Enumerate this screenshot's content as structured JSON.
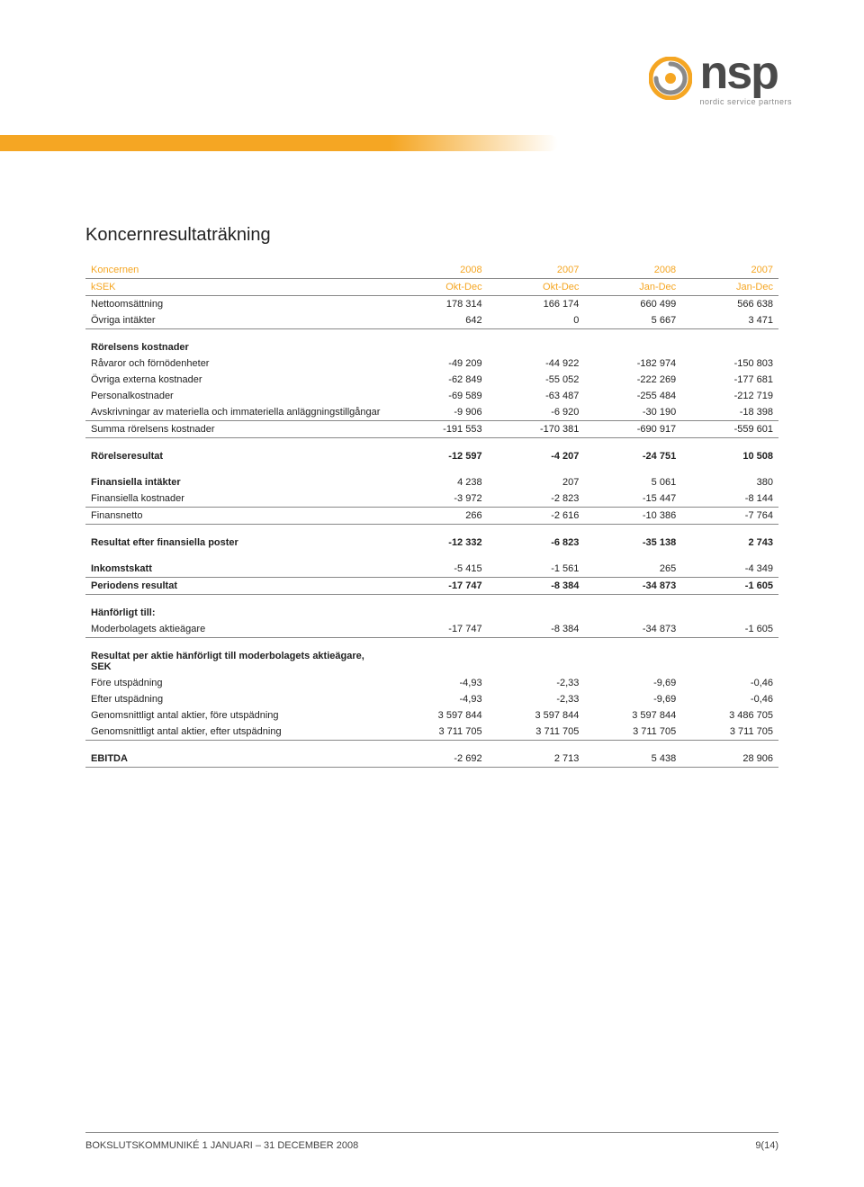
{
  "logo": {
    "text": "nsp",
    "tagline": "nordic service partners",
    "swirl_outer": "#f5a623",
    "swirl_inner": "#8a8a8a"
  },
  "stripe_color": "#f5a623",
  "title": "Koncernresultaträkning",
  "table": {
    "header_row1": [
      "Koncernen",
      "2008",
      "2007",
      "2008",
      "2007"
    ],
    "header_row2": [
      "kSEK",
      "Okt-Dec",
      "Okt-Dec",
      "Jan-Dec",
      "Jan-Dec"
    ],
    "header_color": "#f5a623",
    "rows": [
      {
        "label": "Nettoomsättning",
        "v": [
          "178 314",
          "166 174",
          "660 499",
          "566 638"
        ],
        "bold": false
      },
      {
        "label": "Övriga intäkter",
        "v": [
          "642",
          "0",
          "5 667",
          "3 471"
        ],
        "bold": false,
        "underline": true
      },
      {
        "label": "Rörelsens kostnader",
        "v": [
          "",
          "",
          "",
          ""
        ],
        "bold": true,
        "section": true
      },
      {
        "label": "Råvaror och förnödenheter",
        "v": [
          "-49 209",
          "-44 922",
          "-182 974",
          "-150 803"
        ],
        "bold": false
      },
      {
        "label": "Övriga externa kostnader",
        "v": [
          "-62 849",
          "-55 052",
          "-222 269",
          "-177 681"
        ],
        "bold": false
      },
      {
        "label": "Personalkostnader",
        "v": [
          "-69 589",
          "-63 487",
          "-255 484",
          "-212 719"
        ],
        "bold": false
      },
      {
        "label": "Avskrivningar av materiella och immateriella anläggningstillgångar",
        "v": [
          "-9 906",
          "-6 920",
          "-30 190",
          "-18 398"
        ],
        "bold": false,
        "underline": true
      },
      {
        "label": "Summa rörelsens kostnader",
        "v": [
          "-191 553",
          "-170 381",
          "-690 917",
          "-559 601"
        ],
        "bold": false,
        "underline": true
      },
      {
        "label": "Rörelseresultat",
        "v": [
          "-12 597",
          "-4 207",
          "-24 751",
          "10 508"
        ],
        "bold": true,
        "section": true
      },
      {
        "label": "Finansiella intäkter",
        "v": [
          "4 238",
          "207",
          "5 061",
          "380"
        ],
        "bold": false,
        "section": true
      },
      {
        "label": "Finansiella kostnader",
        "v": [
          "-3 972",
          "-2 823",
          "-15 447",
          "-8 144"
        ],
        "bold": false,
        "underline": true
      },
      {
        "label": "Finansnetto",
        "v": [
          "266",
          "-2 616",
          "-10 386",
          "-7 764"
        ],
        "bold": false,
        "underline": true
      },
      {
        "label": "Resultat efter finansiella poster",
        "v": [
          "-12 332",
          "-6 823",
          "-35 138",
          "2 743"
        ],
        "bold": true,
        "section": true
      },
      {
        "label": "Inkomstskatt",
        "v": [
          "-5 415",
          "-1 561",
          "265",
          "-4 349"
        ],
        "bold": false,
        "section": true,
        "underline": true
      },
      {
        "label": "Periodens resultat",
        "v": [
          "-17 747",
          "-8 384",
          "-34 873",
          "-1 605"
        ],
        "bold": true,
        "underline": true
      },
      {
        "label": "Hänförligt till:",
        "v": [
          "",
          "",
          "",
          ""
        ],
        "bold": true,
        "section": true
      },
      {
        "label": "Moderbolagets aktieägare",
        "v": [
          "-17 747",
          "-8 384",
          "-34 873",
          "-1 605"
        ],
        "bold": false,
        "underline": true
      },
      {
        "label": "Resultat per aktie hänförligt till moderbolagets aktieägare, SEK",
        "v": [
          "",
          "",
          "",
          ""
        ],
        "bold": true,
        "section": true
      },
      {
        "label": "Före utspädning",
        "v": [
          "-4,93",
          "-2,33",
          "-9,69",
          "-0,46"
        ],
        "bold": false
      },
      {
        "label": "Efter utspädning",
        "v": [
          "-4,93",
          "-2,33",
          "-9,69",
          "-0,46"
        ],
        "bold": false
      },
      {
        "label": "Genomsnittligt antal aktier, före utspädning",
        "v": [
          "3 597 844",
          "3 597 844",
          "3 597 844",
          "3 486 705"
        ],
        "bold": false
      },
      {
        "label": "Genomsnittligt antal aktier, efter utspädning",
        "v": [
          "3 711 705",
          "3 711 705",
          "3 711 705",
          "3 711 705"
        ],
        "bold": false,
        "underline": true
      },
      {
        "label": "EBITDA",
        "v": [
          "-2 692",
          "2 713",
          "5 438",
          "28 906"
        ],
        "bold": false,
        "section": true,
        "underline": true
      }
    ]
  },
  "footer": {
    "left": "BOKSLUTSKOMMUNIKÉ 1 JANUARI – 31 DECEMBER 2008",
    "right": "9(14)"
  }
}
